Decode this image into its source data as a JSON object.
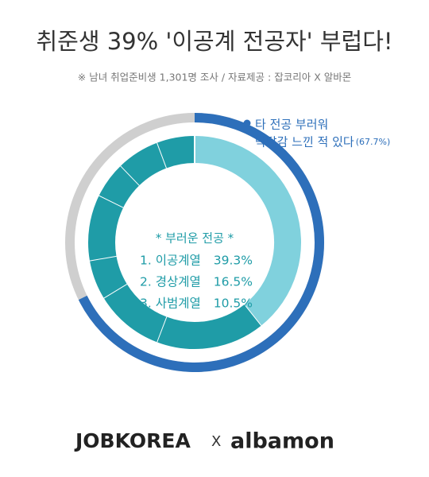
{
  "header": {
    "title": "취준생 39% '이공계 전공자' 부럽다!",
    "subtitle": "※ 남녀 취업준비생 1,301명 조사 / 자료제공 : 잡코리아 X 알바몬"
  },
  "chart_data": [
    {
      "type": "donut",
      "annotation": [
        "타 전공 부러워",
        "박탈감 느낀 적 있다"
      ],
      "values": [
        67.7
      ],
      "value_labels": [
        "(67.7%)"
      ],
      "colors": [
        "#2d6fba"
      ]
    },
    {
      "type": "donut",
      "title": "* 부러운 전공 *",
      "categories": [
        "1. 이공계열",
        "2. 경상계열",
        "3. 사범계열",
        null,
        null,
        null,
        null,
        null
      ],
      "values": [
        39.3,
        16.5,
        10.5,
        6,
        10,
        5.5,
        6.5,
        5.7
      ],
      "value_labels": [
        "39.3%",
        "16.5%",
        "10.5%",
        null,
        null,
        null,
        null,
        null
      ],
      "colors": [
        "#80d1dd",
        "#1f9ca7",
        "#1f9ca7",
        "#1f9ca7",
        "#1f9ca7",
        "#1f9ca7",
        "#1f9ca7",
        "#1f9ca7"
      ]
    }
  ],
  "footer": {
    "logo_left": "JOBKOREA",
    "separator": "X",
    "logo_right": "albamon"
  }
}
